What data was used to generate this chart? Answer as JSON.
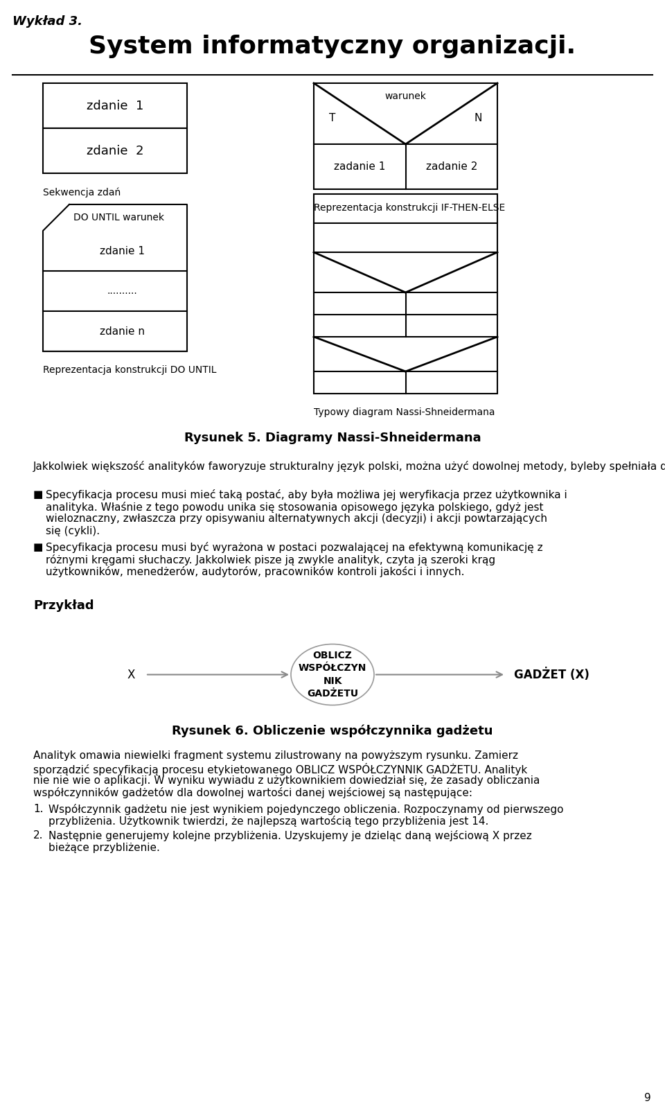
{
  "title": "System informatyczny organizacji.",
  "subtitle": "Wykład 3.",
  "bg_color": "#ffffff",
  "text_color": "#000000",
  "fig_width": 9.6,
  "fig_height": 16.09,
  "section1_title": "Rysunek 5. Diagramy Nassi-Shneidermana",
  "para1": "Jakkolwiek większość analityków faworyzuje strukturalny język polski, można użyć dowolnej metody, byleby spełniała dwa podstawowe wymagania:",
  "bullet1_line1": "Specyfikacja procesu musi mieć taką postać, aby była możliwa jej weryfikacja przez użytkownika i",
  "bullet1_line2": "analityka. Właśnie z tego powodu unika się stosowania opisowego języka polskiego, gdyż jest",
  "bullet1_line3": "wieloznaczny, zwłaszcza przy opisywaniu alternatywnych akcji (decyzji) i akcji powtarzających",
  "bullet1_line4": "się (cykli).",
  "bullet2_line1": "Specyfikacja procesu musi być wyrażona w postaci pozwalającej na efektywną komunikację z",
  "bullet2_line2": "różnymi kręgami słuchaczy. Jakkolwiek pisze ją zwykle analityk, czyta ją szeroki krąg",
  "bullet2_line3": "użytkowników, menedżerów, audytorów, pracowników kontroli jakości i innych.",
  "przyklad_label": "Przykład",
  "oblicz_label": "OBLICZ\nWSPÓŁCZYN\nNIK\nGADŻETU",
  "x_label": "X",
  "gadzet_label": "GADŻET (X)",
  "rysunek6_title": "Rysunek 6. Obliczenie współczynnika gadżetu",
  "para6_line1": "Analityk omawia niewielki fragment systemu zilustrowany na powyższym rysunku. Zamierz",
  "para6_line2": "sporządzić specyfikacją procesu etykietowanego OBLICZ WSPÓŁCZYNNIK GADŻETU. Analityk",
  "para6_line3": "nie nie wie o aplikacji. W wyniku wywiadu z użytkownikiem dowiedział się, że zasady obliczania",
  "para6_line4": "współczynników gadżetów dla dowolnej wartości danej wejściowej są następujące:",
  "item1_line1": "Współczynnik gadżetu nie jest wynikiem pojedynczego obliczenia. Rozpoczynamy od pierwszego",
  "item1_line2": "przybliżenia. Użytkownik twierdzi, że najlepszą wartością tego przybliżenia jest 14.",
  "item2_line1": "Następnie generujemy kolejne przybliżenia. Uzyskujemy je dzieląc daną wejściową X przez",
  "item2_line2": "bieżące przybliżenie.",
  "page_num": "9"
}
